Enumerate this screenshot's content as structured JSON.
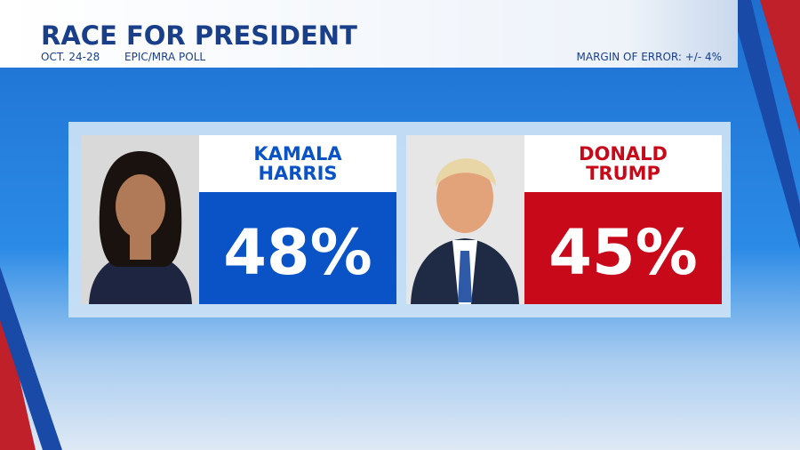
{
  "header": {
    "title": "RACE FOR PRESIDENT",
    "date": "OCT. 24-28",
    "source": "EPIC/MRA POLL",
    "margin": "MARGIN OF ERROR: +/- 4%"
  },
  "candidates": [
    {
      "name": [
        "KAMALA",
        "HARRIS"
      ],
      "result": "48%"
    },
    {
      "name": [
        "DONALD",
        "TRUMP"
      ],
      "result": "45%"
    }
  ]
}
